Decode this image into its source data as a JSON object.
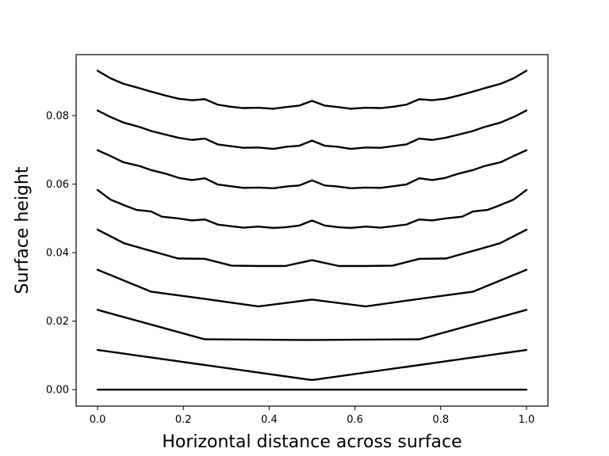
{
  "chart_data": {
    "type": "line",
    "title": "",
    "xlabel": "Horizontal distance across surface",
    "ylabel": "Surface height",
    "xlim": [
      -0.05,
      1.05
    ],
    "ylim": [
      -0.0048,
      0.0978
    ],
    "xticks": [
      0.0,
      0.2,
      0.4,
      0.6,
      0.8,
      1.0
    ],
    "xtick_labels": [
      "0.0",
      "0.2",
      "0.4",
      "0.6",
      "0.8",
      "1.0"
    ],
    "yticks": [
      0.0,
      0.02,
      0.04,
      0.06,
      0.08
    ],
    "ytick_labels": [
      "0.00",
      "0.02",
      "0.04",
      "0.06",
      "0.08"
    ],
    "grid": false,
    "legend": "none",
    "line_color": "#000000",
    "series": [
      {
        "x": [
          0,
          1
        ],
        "y": [
          0.0,
          0.0
        ]
      },
      {
        "x": [
          0,
          0.5,
          1
        ],
        "y": [
          0.0116,
          0.0028,
          0.0116
        ]
      },
      {
        "x": [
          0,
          0.25,
          0.5,
          0.75,
          1
        ],
        "y": [
          0.0233,
          0.0147,
          0.0145,
          0.0147,
          0.0233
        ]
      },
      {
        "x": [
          0,
          0.125,
          0.25,
          0.375,
          0.5,
          0.625,
          0.75,
          0.875,
          1
        ],
        "y": [
          0.035,
          0.0286,
          0.0265,
          0.0243,
          0.0263,
          0.0243,
          0.0265,
          0.0286,
          0.035
        ]
      },
      {
        "x": [
          0,
          0.0625,
          0.1875,
          0.25,
          0.3125,
          0.375,
          0.4375,
          0.5,
          0.5625,
          0.625,
          0.6875,
          0.75,
          0.8125,
          0.9375,
          1
        ],
        "y": [
          0.0467,
          0.0427,
          0.0383,
          0.0382,
          0.0362,
          0.0361,
          0.0361,
          0.0378,
          0.0361,
          0.0361,
          0.0362,
          0.0382,
          0.0383,
          0.0427,
          0.0467
        ]
      },
      {
        "x": [
          0,
          0.03,
          0.0625,
          0.09,
          0.125,
          0.15,
          0.1875,
          0.22,
          0.25,
          0.28,
          0.3125,
          0.34,
          0.375,
          0.41,
          0.4375,
          0.47,
          0.5,
          0.53,
          0.5625,
          0.59,
          0.625,
          0.66,
          0.6875,
          0.72,
          0.75,
          0.78,
          0.8125,
          0.85,
          0.875,
          0.91,
          0.9375,
          0.97,
          1
        ],
        "y": [
          0.0583,
          0.0555,
          0.0538,
          0.0525,
          0.052,
          0.0505,
          0.05,
          0.0494,
          0.0497,
          0.0482,
          0.0477,
          0.0473,
          0.0476,
          0.0472,
          0.0474,
          0.0479,
          0.0494,
          0.0479,
          0.0474,
          0.0472,
          0.0476,
          0.0473,
          0.0477,
          0.0482,
          0.0497,
          0.0494,
          0.05,
          0.0505,
          0.052,
          0.0525,
          0.0538,
          0.0555,
          0.0583
        ]
      },
      {
        "x": [
          0,
          0.03,
          0.06,
          0.1,
          0.125,
          0.16,
          0.19,
          0.22,
          0.25,
          0.28,
          0.31,
          0.34,
          0.375,
          0.41,
          0.44,
          0.47,
          0.5,
          0.53,
          0.56,
          0.59,
          0.625,
          0.66,
          0.69,
          0.72,
          0.75,
          0.78,
          0.81,
          0.84,
          0.875,
          0.9,
          0.94,
          0.97,
          1
        ],
        "y": [
          0.0699,
          0.0682,
          0.0664,
          0.0652,
          0.0641,
          0.063,
          0.0618,
          0.0612,
          0.0617,
          0.0599,
          0.0594,
          0.0589,
          0.059,
          0.0588,
          0.0593,
          0.0596,
          0.0611,
          0.0596,
          0.0593,
          0.0588,
          0.059,
          0.0589,
          0.0594,
          0.0599,
          0.0617,
          0.0612,
          0.0618,
          0.063,
          0.0641,
          0.0652,
          0.0664,
          0.0682,
          0.0699
        ]
      },
      {
        "x": [
          0,
          0.03,
          0.06,
          0.1,
          0.125,
          0.16,
          0.19,
          0.22,
          0.25,
          0.28,
          0.31,
          0.34,
          0.375,
          0.41,
          0.44,
          0.47,
          0.5,
          0.53,
          0.56,
          0.59,
          0.625,
          0.66,
          0.69,
          0.72,
          0.75,
          0.78,
          0.81,
          0.84,
          0.875,
          0.9,
          0.94,
          0.97,
          1
        ],
        "y": [
          0.0815,
          0.0796,
          0.078,
          0.0766,
          0.0755,
          0.0744,
          0.0735,
          0.0729,
          0.0733,
          0.0716,
          0.0711,
          0.0706,
          0.0707,
          0.0703,
          0.0709,
          0.0712,
          0.0727,
          0.0712,
          0.0709,
          0.0703,
          0.0707,
          0.0706,
          0.0711,
          0.0716,
          0.0733,
          0.0729,
          0.0735,
          0.0744,
          0.0755,
          0.0766,
          0.078,
          0.0796,
          0.0815
        ]
      },
      {
        "x": [
          0,
          0.03,
          0.06,
          0.1,
          0.125,
          0.16,
          0.19,
          0.22,
          0.25,
          0.28,
          0.31,
          0.34,
          0.375,
          0.41,
          0.44,
          0.47,
          0.5,
          0.53,
          0.56,
          0.59,
          0.625,
          0.66,
          0.69,
          0.72,
          0.75,
          0.78,
          0.81,
          0.84,
          0.875,
          0.9,
          0.94,
          0.97,
          1
        ],
        "y": [
          0.0931,
          0.0909,
          0.0893,
          0.0879,
          0.087,
          0.0858,
          0.0849,
          0.0845,
          0.0848,
          0.0832,
          0.0826,
          0.0822,
          0.0823,
          0.082,
          0.0825,
          0.0829,
          0.0843,
          0.0829,
          0.0825,
          0.082,
          0.0823,
          0.0822,
          0.0826,
          0.0832,
          0.0848,
          0.0845,
          0.0849,
          0.0858,
          0.087,
          0.0879,
          0.0893,
          0.0909,
          0.0931
        ]
      }
    ]
  }
}
